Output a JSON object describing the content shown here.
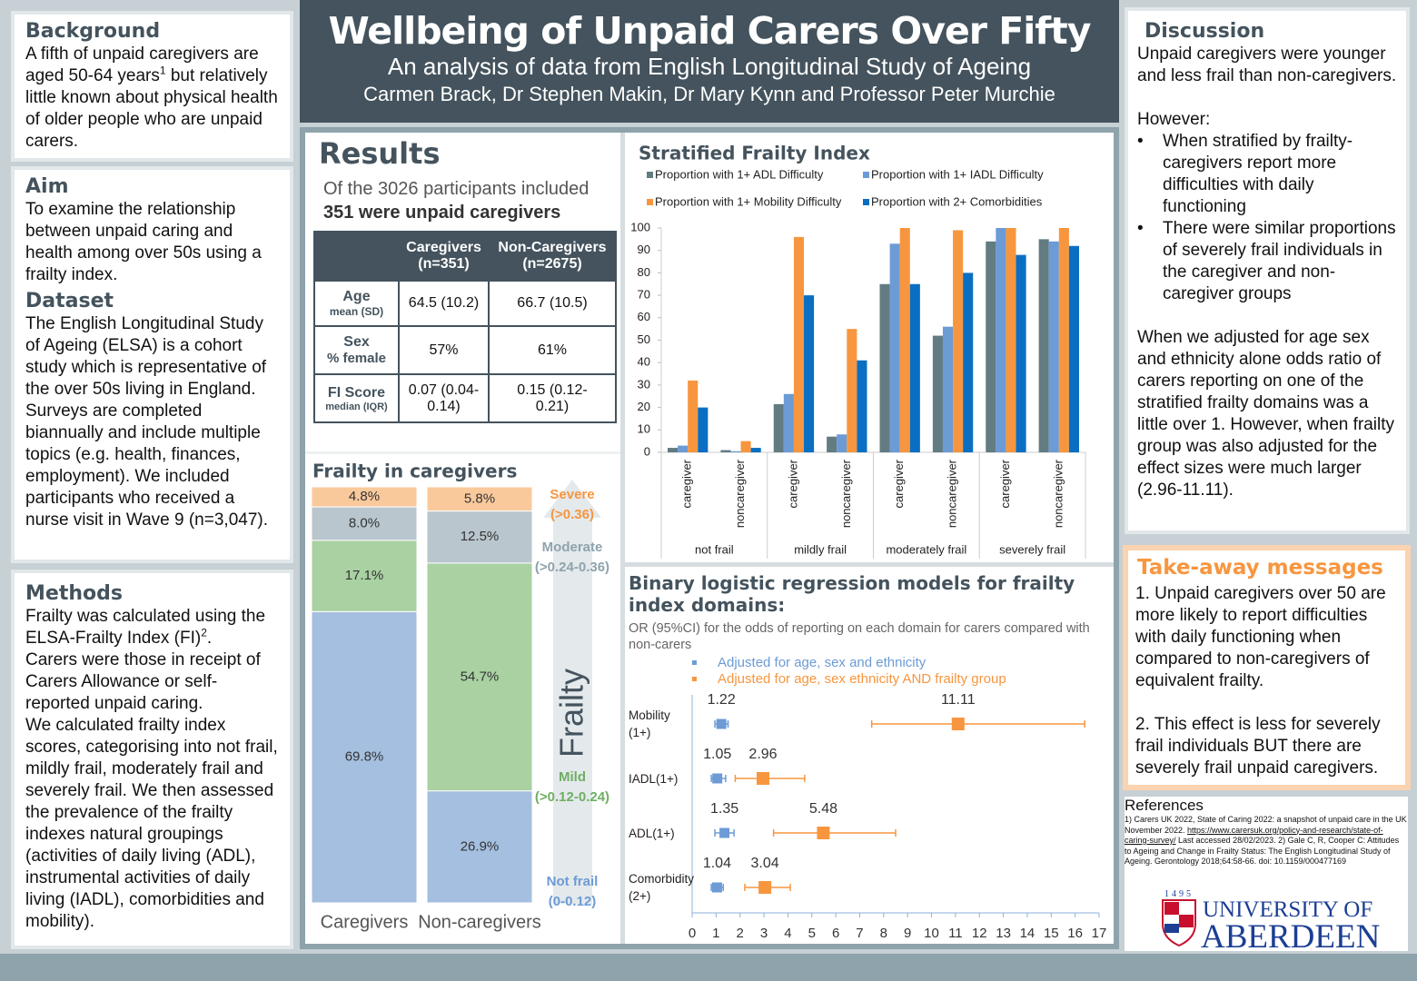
{
  "header": {
    "title": "Wellbeing of Unpaid Carers Over Fifty",
    "subtitle": "An analysis of data from English Longitudinal Study of Ageing",
    "authors": "Carmen Brack, Dr Stephen Makin, Dr Mary Kynn and Professor Peter Murchie"
  },
  "background": {
    "heading": "Background",
    "text": [
      "A fifth of unpaid caregivers are aged 50-64 years",
      "1",
      " but relatively little known about physical health of older people who are unpaid carers."
    ]
  },
  "aim": {
    "heading": "Aim",
    "text": "To examine the relationship between unpaid caring and health among over 50s using a frailty index."
  },
  "dataset": {
    "heading": "Dataset",
    "text": "The English Longitudinal Study of Ageing (ELSA) is a cohort study which is representative of the over 50s living in England. Surveys are completed biannually and include multiple topics (e.g. health, finances, employment). We included participants who received a nurse visit in Wave 9 (n=3,047)."
  },
  "methods": {
    "heading": "Methods",
    "lead": [
      "Frailty was calculated using the ELSA-Frailty Index (FI)",
      "2",
      "."
    ],
    "paragraphs": [
      "Carers were those in receipt of Carers Allowance or self-reported unpaid caring.",
      "We calculated frailty index scores, categorising into not frail, mildly frail, moderately frail and severely frail. We then assessed the prevalence of the frailty indexes natural groupings (activities of daily living (ADL), instrumental activities of daily living (IADL), comorbidities and mobility)."
    ]
  },
  "results": {
    "heading": "Results",
    "intro": "Of the 3026 participants included",
    "intro_bold": "351 were unpaid caregivers",
    "table": {
      "header": [
        {
          "title": "Caregivers",
          "sub": "(n=351)"
        },
        {
          "title": "Non-Caregivers",
          "sub": "(n=2675)"
        }
      ],
      "rows": [
        {
          "label": "Age",
          "sub": "mean (SD)",
          "cells": [
            "64.5 (10.2)",
            "66.7 (10.5)"
          ]
        },
        {
          "label": "Sex",
          "sub": "% female",
          "cells": [
            "57%",
            "61%"
          ]
        },
        {
          "label": "FI Score",
          "sub": "median (IQR)",
          "cells": [
            "0.07 (0.04-0.14)",
            "0.15 (0.12-0.21)"
          ]
        }
      ]
    }
  },
  "discussion": {
    "heading": "Discussion",
    "p1": "Unpaid caregivers were younger and less frail than non-caregivers.",
    "p2": "However:",
    "bullets": [
      "When stratified by frailty- caregivers report more difficulties with daily functioning",
      "There were similar proportions of severely frail individuals in the caregiver and non-caregiver groups"
    ],
    "p3": "When we adjusted for age sex and ethnicity alone odds ratio of carers reporting on one of the stratified frailty domains was a little over 1. However, when frailty group was also adjusted for the effect sizes were much larger (2.96-11.11)."
  },
  "takeaway": {
    "heading": "Take-away messages",
    "items": [
      "1. Unpaid caregivers over 50 are more likely to report difficulties with daily functioning when compared to non-caregivers of equivalent frailty.",
      "2. This effect is less for severely frail individuals BUT there are severely frail unpaid caregivers."
    ]
  },
  "references": {
    "heading": "References",
    "text": [
      "1) Carers UK 2022, State of Caring 2022: a snapshot of unpaid care in the UK November 2022. ",
      "https://www.carersuk.org/policy-and-research/state-of-caring-survey/",
      " Last accessed 28/02/2023. 2) Gale C, R, Cooper C: Attitudes to Ageing and Change in Frailty Status: The English Longitudinal Study of Ageing. Gerontology 2018;64:58-66. doi: 10.1159/000477169"
    ]
  },
  "logo": {
    "year": "1495",
    "line1": "UNIVERSITY OF",
    "line2": "ABERDEEN"
  },
  "chart_data": [
    {
      "type": "bar",
      "title": "Stratified Frailty Index",
      "categories": [
        "caregiver",
        "noncaregiver",
        "caregiver",
        "noncaregiver",
        "caregiver",
        "noncaregiver",
        "caregiver",
        "noncaregiver"
      ],
      "groups": [
        "not frail",
        "mildly frail",
        "moderately frail",
        "severely frail"
      ],
      "series": [
        {
          "name": "Proportion with 1+ ADL Difficulty",
          "color": "#627c82",
          "values": [
            2,
            1,
            21.5,
            7,
            75,
            52,
            94,
            95
          ]
        },
        {
          "name": "Proportion with 1+ IADL Difficulty",
          "color": "#6c9bd5",
          "values": [
            3,
            0.5,
            26,
            8,
            93,
            56,
            100,
            94
          ]
        },
        {
          "name": "Proportion with 1+ Mobility Difficulty",
          "color": "#f7963f",
          "values": [
            32,
            5,
            96,
            55,
            100,
            99,
            100,
            100
          ]
        },
        {
          "name": "Proportion with 2+ Comorbidities",
          "color": "#0a6fc2",
          "values": [
            20,
            2,
            70,
            41,
            75,
            80,
            88,
            92
          ]
        }
      ],
      "ylim": [
        0,
        100
      ],
      "yticks": [
        0,
        10,
        20,
        30,
        40,
        50,
        60,
        70,
        80,
        90,
        100
      ],
      "legend": "top"
    },
    {
      "type": "stacked_bar",
      "title": "Frailty in caregivers",
      "categories": [
        "Caregivers",
        "Non-caregivers"
      ],
      "axis_label": "Frailty",
      "series": [
        {
          "name": "Not frail",
          "range": "(0-0.12)",
          "color": "#a4bfdf",
          "label_color": "#6c9bd5",
          "values": [
            69.8,
            26.9
          ],
          "value_labels": [
            "69.8%",
            "26.9%"
          ]
        },
        {
          "name": "Mild",
          "range": "(>0.12-0.24)",
          "color": "#a9d1a2",
          "label_color": "#6fae63",
          "values": [
            17.1,
            54.7
          ],
          "value_labels": [
            "17.1%",
            "54.7%"
          ]
        },
        {
          "name": "Moderate",
          "range": "(>0.24-0.36)",
          "color": "#b9c6cd",
          "label_color": "#8ea3ab",
          "values": [
            8.0,
            12.5
          ],
          "value_labels": [
            "8.0%",
            "12.5%"
          ]
        },
        {
          "name": "Severe",
          "range": "(>0.36)",
          "color": "#f9c99c",
          "label_color": "#f7963f",
          "values": [
            4.8,
            5.8
          ],
          "value_labels": [
            "4.8%",
            "5.8%"
          ]
        }
      ]
    },
    {
      "type": "forest",
      "title": "Binary logistic regression models for frailty index domains:",
      "subtitle": "OR (95%CI) for the odds of reporting on each domain for carers compared with non-carers",
      "categories": [
        "Mobility (1+)",
        "IADL(1+)",
        "ADL(1+)",
        "Comorbidity (2+)"
      ],
      "series": [
        {
          "name": "Adjusted for age, sex and ethnicity",
          "color": "#6c9bd5",
          "values": [
            1.22,
            1.05,
            1.35,
            1.04
          ],
          "lower": [
            0.95,
            0.8,
            0.95,
            0.8
          ],
          "upper": [
            1.5,
            1.4,
            1.75,
            1.3
          ]
        },
        {
          "name": "Adjusted for age, sex ethnicity AND frailty group",
          "color": "#f7963f",
          "values": [
            11.11,
            2.96,
            5.48,
            3.04
          ],
          "lower": [
            7.5,
            1.8,
            3.4,
            2.2
          ],
          "upper": [
            16.4,
            4.7,
            8.5,
            4.1
          ]
        }
      ],
      "xlim": [
        0,
        17
      ],
      "xticks": [
        0,
        1,
        2,
        3,
        4,
        5,
        6,
        7,
        8,
        9,
        10,
        11,
        12,
        13,
        14,
        15,
        16,
        17
      ]
    }
  ]
}
